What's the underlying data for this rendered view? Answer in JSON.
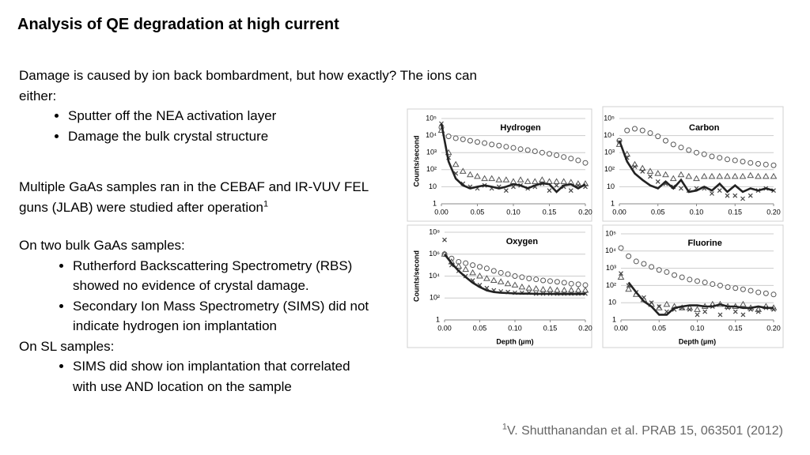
{
  "header": {
    "title": "Analysis of QE degradation at high current"
  },
  "body": {
    "intro": "Damage is caused by ion back bombardment, but how exactly? The ions can either:",
    "intro_bullets": [
      "Sputter off the NEA activation layer",
      "Damage the bulk crystal structure"
    ],
    "samples": "Multiple GaAs samples ran in the CEBAF and IR-VUV FEL  guns (JLAB) were studied after operation",
    "samples_ref": "1",
    "bulk": "On two bulk GaAs samples:",
    "bulk_bullets": [
      "Rutherford Backscattering Spectrometry (RBS) showed no evidence of crystal damage.",
      "Secondary Ion Mass Spectrometry (SIMS) did not indicate hydrogen ion implantation"
    ],
    "sl": "On SL samples:",
    "sl_bullets": [
      "SIMS did show ion implantation that correlated with use AND location on the sample"
    ]
  },
  "footnote": {
    "ref": "1",
    "text": "V. Shutthanandan et al. PRAB 15, 063501 (2012)"
  },
  "chart_data": [
    {
      "type": "scatter",
      "title": "Hydrogen",
      "ylabel": "Counts/second",
      "log_y": true,
      "grid": true,
      "xlim": [
        0,
        0.2
      ],
      "ylim": [
        1,
        100000
      ],
      "xticks": [
        {
          "value": 0,
          "label": "0.00"
        },
        {
          "value": 0.05,
          "label": "0.05"
        },
        {
          "value": 0.1,
          "label": "0.10"
        },
        {
          "value": 0.15,
          "label": "0.15"
        },
        {
          "value": 0.2,
          "label": "0.20"
        }
      ],
      "yticks": [
        1,
        10,
        {
          "value": 100,
          "label": "10²"
        },
        {
          "value": 1000,
          "label": "10³"
        },
        {
          "value": 10000,
          "label": "10⁴"
        },
        {
          "value": 100000,
          "label": "10⁵"
        }
      ],
      "x": [
        0,
        0.01,
        0.02,
        0.03,
        0.04,
        0.05,
        0.06,
        0.07,
        0.08,
        0.09,
        0.1,
        0.11,
        0.12,
        0.13,
        0.14,
        0.15,
        0.16,
        0.17,
        0.18,
        0.19,
        0.2
      ],
      "series": [
        {
          "marker": "circle",
          "color": "#555555",
          "values": [
            30000,
            9000,
            7000,
            6000,
            5000,
            4200,
            3600,
            3000,
            2600,
            2200,
            1900,
            1600,
            1400,
            1200,
            1000,
            850,
            700,
            550,
            450,
            350,
            250
          ]
        },
        {
          "marker": "triangle",
          "color": "#555555",
          "values": [
            20000,
            1000,
            200,
            80,
            50,
            40,
            30,
            30,
            25,
            25,
            20,
            25,
            20,
            20,
            25,
            20,
            20,
            20,
            18,
            15,
            15
          ]
        },
        {
          "marker": "cross",
          "color": "#444444",
          "values": [
            50000,
            500,
            60,
            15,
            10,
            8,
            12,
            8,
            10,
            6,
            10,
            12,
            8,
            10,
            15,
            6,
            12,
            10,
            6,
            12,
            10
          ]
        },
        {
          "marker": "line",
          "color": "#222222",
          "values": [
            50000,
            300,
            30,
            12,
            8,
            10,
            12,
            10,
            8,
            10,
            14,
            12,
            8,
            12,
            16,
            14,
            5,
            12,
            14,
            8,
            14
          ]
        }
      ]
    },
    {
      "type": "scatter",
      "title": "Carbon",
      "log_y": true,
      "grid": true,
      "xlim": [
        0,
        0.2
      ],
      "ylim": [
        1,
        100000
      ],
      "xticks": [
        {
          "value": 0,
          "label": "0.00"
        },
        {
          "value": 0.05,
          "label": "0.05"
        },
        {
          "value": 0.1,
          "label": "0.10"
        },
        {
          "value": 0.15,
          "label": "0.15"
        },
        {
          "value": 0.2,
          "label": "0.20"
        }
      ],
      "yticks": [
        1,
        10,
        {
          "value": 100,
          "label": "10²"
        },
        {
          "value": 1000,
          "label": "10³"
        },
        {
          "value": 10000,
          "label": "10⁴"
        },
        {
          "value": 100000,
          "label": "10⁵"
        }
      ],
      "x": [
        0,
        0.01,
        0.02,
        0.03,
        0.04,
        0.05,
        0.06,
        0.07,
        0.08,
        0.09,
        0.1,
        0.11,
        0.12,
        0.13,
        0.14,
        0.15,
        0.16,
        0.17,
        0.18,
        0.19,
        0.2
      ],
      "series": [
        {
          "marker": "circle",
          "color": "#555555",
          "values": [
            5000,
            20000,
            25000,
            20000,
            14000,
            9000,
            5000,
            3000,
            2000,
            1400,
            1000,
            800,
            600,
            500,
            400,
            350,
            300,
            250,
            220,
            200,
            180
          ]
        },
        {
          "marker": "triangle",
          "color": "#555555",
          "values": [
            3000,
            800,
            200,
            120,
            80,
            60,
            50,
            30,
            50,
            40,
            30,
            40,
            40,
            40,
            40,
            40,
            40,
            45,
            40,
            40,
            40
          ]
        },
        {
          "marker": "cross",
          "color": "#444444",
          "values": [
            4000,
            500,
            150,
            80,
            40,
            20,
            15,
            10,
            8,
            6,
            8,
            8,
            4,
            6,
            3,
            3,
            2,
            3,
            6,
            8,
            6
          ]
        },
        {
          "marker": "line",
          "color": "#222222",
          "values": [
            5000,
            300,
            60,
            25,
            12,
            8,
            20,
            8,
            25,
            5,
            6,
            10,
            6,
            15,
            5,
            12,
            5,
            8,
            6,
            8,
            6
          ]
        }
      ]
    },
    {
      "type": "scatter",
      "title": "Oxygen",
      "ylabel": "Counts/second",
      "xlabel": "Depth (µm)",
      "log_y": true,
      "grid": true,
      "xlim": [
        0,
        0.2
      ],
      "ylim": [
        1,
        100000000
      ],
      "xticks": [
        {
          "value": 0,
          "label": "0.00"
        },
        {
          "value": 0.05,
          "label": "0.05"
        },
        {
          "value": 0.1,
          "label": "0.10"
        },
        {
          "value": 0.15,
          "label": "0.15"
        },
        {
          "value": 0.2,
          "label": "0.20"
        }
      ],
      "yticks": [
        1,
        {
          "value": 100,
          "label": "10²"
        },
        {
          "value": 10000,
          "label": "10⁴"
        },
        {
          "value": 1000000,
          "label": "10⁶"
        },
        {
          "value": 100000000,
          "label": "10⁸"
        }
      ],
      "x": [
        0,
        0.01,
        0.02,
        0.03,
        0.04,
        0.05,
        0.06,
        0.07,
        0.08,
        0.09,
        0.1,
        0.11,
        0.12,
        0.13,
        0.14,
        0.15,
        0.16,
        0.17,
        0.18,
        0.19,
        0.2
      ],
      "series": [
        {
          "marker": "circle",
          "color": "#555555",
          "values": [
            1000000,
            400000,
            200000,
            150000,
            100000,
            70000,
            50000,
            30000,
            20000,
            15000,
            10000,
            8000,
            6000,
            5000,
            4000,
            3500,
            3000,
            2500,
            2000,
            1800,
            1500
          ]
        },
        {
          "marker": "triangle",
          "color": "#555555",
          "values": [
            1000000,
            200000,
            80000,
            40000,
            20000,
            10000,
            6000,
            4000,
            3000,
            2000,
            1500,
            1000,
            800,
            700,
            600,
            600,
            500,
            500,
            500,
            500,
            500
          ]
        },
        {
          "marker": "cross",
          "color": "#444444",
          "values": [
            20000000,
            100000,
            30000,
            10000,
            4000,
            1500,
            800,
            500,
            400,
            350,
            300,
            300,
            300,
            250,
            250,
            250,
            250,
            250,
            250,
            250,
            250
          ]
        },
        {
          "marker": "line",
          "color": "#222222",
          "values": [
            1000000,
            150000,
            30000,
            8000,
            2500,
            1000,
            500,
            350,
            300,
            280,
            260,
            250,
            250,
            240,
            240,
            240,
            230,
            230,
            230,
            230,
            240
          ]
        }
      ]
    },
    {
      "type": "scatter",
      "title": "Fluorine",
      "xlabel": "Depth (µm)",
      "log_y": true,
      "grid": true,
      "xlim": [
        0,
        0.2
      ],
      "ylim": [
        1,
        100000
      ],
      "xticks": [
        {
          "value": 0,
          "label": "0.00"
        },
        {
          "value": 0.05,
          "label": "0.05"
        },
        {
          "value": 0.1,
          "label": "0.10"
        },
        {
          "value": 0.15,
          "label": "0.15"
        },
        {
          "value": 0.2,
          "label": "0.20"
        }
      ],
      "yticks": [
        1,
        10,
        {
          "value": 100,
          "label": "10²"
        },
        {
          "value": 1000,
          "label": "10³"
        },
        {
          "value": 10000,
          "label": "10⁴"
        },
        {
          "value": 100000,
          "label": "10⁵"
        }
      ],
      "x": [
        0,
        0.01,
        0.02,
        0.03,
        0.04,
        0.05,
        0.06,
        0.07,
        0.08,
        0.09,
        0.1,
        0.11,
        0.12,
        0.13,
        0.14,
        0.15,
        0.16,
        0.17,
        0.18,
        0.19,
        0.2
      ],
      "series": [
        {
          "marker": "circle",
          "color": "#555555",
          "values": [
            15000,
            5000,
            2500,
            1800,
            1200,
            800,
            600,
            400,
            300,
            220,
            180,
            150,
            120,
            100,
            80,
            70,
            60,
            50,
            40,
            35,
            30
          ]
        },
        {
          "marker": "triangle",
          "color": "#555555",
          "values": [
            300,
            60,
            30,
            15,
            8,
            5,
            8,
            6,
            5,
            5,
            4,
            6,
            8,
            8,
            6,
            6,
            8,
            5,
            4,
            6,
            5
          ]
        },
        {
          "marker": "cross",
          "color": "#444444",
          "values": [
            500,
            100,
            40,
            20,
            10,
            6,
            3,
            4,
            5,
            4,
            2,
            3,
            6,
            2,
            5,
            3,
            2,
            4,
            3,
            5,
            4
          ]
        },
        {
          "marker": "line",
          "color": "#222222",
          "values": [
            null,
            150,
            40,
            12,
            6,
            2,
            2,
            5,
            6,
            7,
            7,
            6,
            6,
            8,
            6,
            6,
            5,
            5,
            6,
            5,
            5
          ]
        }
      ]
    }
  ]
}
